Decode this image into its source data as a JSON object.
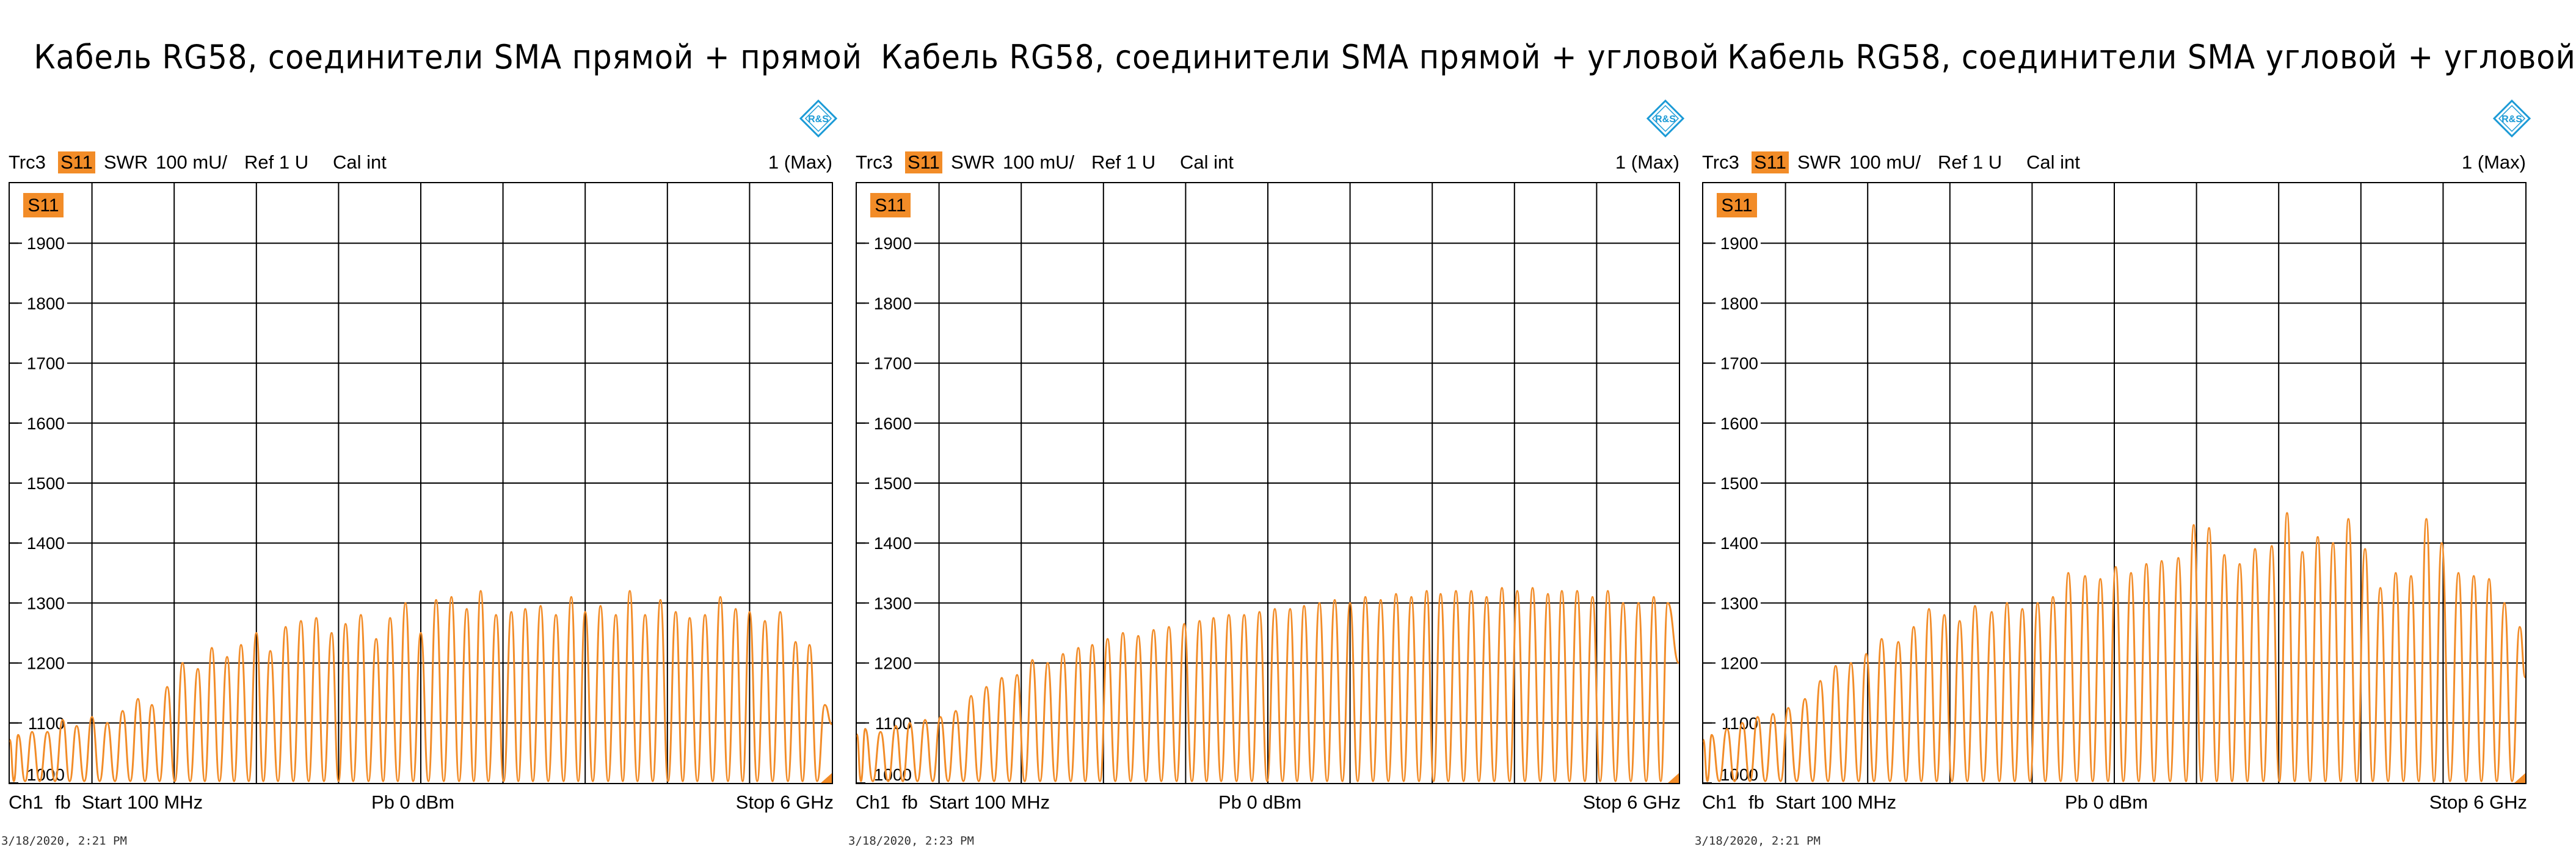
{
  "chart_data": [
    {
      "type": "line",
      "title": "Кабель RG58, соединители SMA прямой + прямой",
      "trace_badge": "S11",
      "header": {
        "trace": "Trc3",
        "param": "S11",
        "format": "SWR",
        "scale": "100 mU/",
        "ref": "Ref 1 U",
        "cal": "Cal int",
        "marker": "1 (Max)"
      },
      "footer": {
        "channel": "Ch1",
        "sweep": "fb",
        "start": "Start  100 MHz",
        "power": "Pb   0 dBm",
        "stop": "Stop  6 GHz"
      },
      "timestamp": "3/18/2020, 2:21 PM",
      "x_unit": "MHz",
      "xlim": [
        100,
        6000
      ],
      "ylim": [
        1000,
        2000
      ],
      "yticks": [
        1000,
        1100,
        1200,
        1300,
        1400,
        1500,
        1600,
        1700,
        1800,
        1900
      ],
      "grid": true,
      "series": [
        {
          "color": "#f28c28",
          "peak_x": [
            160,
            260,
            370,
            480,
            580,
            690,
            800,
            910,
            1020,
            1120,
            1230,
            1340,
            1450,
            1550,
            1660,
            1760,
            1870,
            1970,
            2080,
            2190,
            2300,
            2410,
            2510,
            2620,
            2730,
            2830,
            2940,
            3050,
            3160,
            3270,
            3380,
            3480,
            3590,
            3700,
            3800,
            3910,
            4020,
            4130,
            4230,
            4340,
            4450,
            4550,
            4660,
            4770,
            4880,
            4980,
            5090,
            5200,
            5310,
            5410,
            5520,
            5630,
            5740,
            5840,
            5950
          ],
          "peak_y": [
            1080,
            1085,
            1085,
            1105,
            1095,
            1110,
            1100,
            1120,
            1140,
            1130,
            1160,
            1200,
            1190,
            1225,
            1210,
            1230,
            1250,
            1220,
            1260,
            1270,
            1275,
            1250,
            1265,
            1280,
            1240,
            1275,
            1300,
            1250,
            1305,
            1310,
            1290,
            1320,
            1280,
            1285,
            1290,
            1295,
            1280,
            1310,
            1285,
            1295,
            1280,
            1320,
            1280,
            1305,
            1285,
            1275,
            1280,
            1310,
            1290,
            1285,
            1270,
            1285,
            1235,
            1230,
            1130
          ]
        }
      ]
    },
    {
      "type": "line",
      "title": "Кабель RG58, соединители SMA прямой + угловой",
      "trace_badge": "S11",
      "header": {
        "trace": "Trc3",
        "param": "S11",
        "format": "SWR",
        "scale": "100 mU/",
        "ref": "Ref 1 U",
        "cal": "Cal int",
        "marker": "1 (Max)"
      },
      "footer": {
        "channel": "Ch1",
        "sweep": "fb",
        "start": "Start  100 MHz",
        "power": "Pb   0 dBm",
        "stop": "Stop  6 GHz"
      },
      "timestamp": "3/18/2020, 2:23 PM",
      "x_unit": "MHz",
      "xlim": [
        100,
        6000
      ],
      "ylim": [
        1000,
        2000
      ],
      "yticks": [
        1000,
        1100,
        1200,
        1300,
        1400,
        1500,
        1600,
        1700,
        1800,
        1900
      ],
      "grid": true,
      "series": [
        {
          "color": "#f28c28",
          "peak_x": [
            160,
            270,
            380,
            480,
            590,
            700,
            810,
            920,
            1030,
            1140,
            1250,
            1360,
            1470,
            1580,
            1690,
            1790,
            1900,
            2010,
            2120,
            2230,
            2340,
            2450,
            2560,
            2660,
            2770,
            2880,
            2990,
            3100,
            3210,
            3310,
            3420,
            3530,
            3640,
            3750,
            3860,
            3970,
            4080,
            4190,
            4290,
            4400,
            4510,
            4620,
            4730,
            4840,
            4950,
            5060,
            5160,
            5270,
            5380,
            5490,
            5600,
            5710,
            5820,
            5920
          ],
          "peak_y": [
            1090,
            1085,
            1095,
            1100,
            1105,
            1110,
            1120,
            1145,
            1160,
            1175,
            1180,
            1205,
            1200,
            1215,
            1225,
            1230,
            1240,
            1250,
            1245,
            1255,
            1260,
            1265,
            1270,
            1275,
            1280,
            1280,
            1285,
            1290,
            1290,
            1295,
            1300,
            1305,
            1300,
            1310,
            1305,
            1315,
            1310,
            1320,
            1315,
            1320,
            1320,
            1310,
            1325,
            1320,
            1325,
            1315,
            1320,
            1320,
            1310,
            1320,
            1300,
            1300,
            1310,
            1300
          ]
        }
      ]
    },
    {
      "type": "line",
      "title": "Кабель RG58, соединители SMA угловой + угловой",
      "trace_badge": "S11",
      "header": {
        "trace": "Trc3",
        "param": "S11",
        "format": "SWR",
        "scale": "100 mU/",
        "ref": "Ref 1 U",
        "cal": "Cal int",
        "marker": "1 (Max)"
      },
      "footer": {
        "channel": "Ch1",
        "sweep": "fb",
        "start": "Start  100 MHz",
        "power": "Pb   0 dBm",
        "stop": "Stop  6 GHz"
      },
      "timestamp": "3/18/2020, 2:21 PM",
      "x_unit": "MHz",
      "xlim": [
        100,
        6000
      ],
      "ylim": [
        1000,
        2000
      ],
      "yticks": [
        1000,
        1100,
        1200,
        1300,
        1400,
        1500,
        1600,
        1700,
        1800,
        1900
      ],
      "grid": true,
      "series": [
        {
          "color": "#f28c28",
          "peak_x": [
            160,
            270,
            380,
            490,
            600,
            710,
            830,
            940,
            1050,
            1160,
            1270,
            1380,
            1500,
            1610,
            1720,
            1830,
            1940,
            2050,
            2170,
            2280,
            2390,
            2500,
            2610,
            2720,
            2840,
            2950,
            3060,
            3170,
            3280,
            3390,
            3510,
            3620,
            3730,
            3840,
            3950,
            4060,
            4180,
            4290,
            4400,
            4510,
            4620,
            4730,
            4850,
            4960,
            5070,
            5180,
            5290,
            5400,
            5520,
            5630,
            5740,
            5850,
            5960
          ],
          "peak_y": [
            1080,
            1090,
            1100,
            1110,
            1115,
            1125,
            1140,
            1170,
            1195,
            1200,
            1215,
            1240,
            1235,
            1260,
            1290,
            1280,
            1270,
            1295,
            1285,
            1300,
            1290,
            1300,
            1310,
            1350,
            1345,
            1340,
            1360,
            1350,
            1365,
            1370,
            1375,
            1430,
            1425,
            1380,
            1365,
            1390,
            1395,
            1450,
            1385,
            1410,
            1400,
            1440,
            1390,
            1325,
            1350,
            1345,
            1440,
            1400,
            1350,
            1345,
            1340,
            1300,
            1260
          ]
        }
      ]
    }
  ]
}
